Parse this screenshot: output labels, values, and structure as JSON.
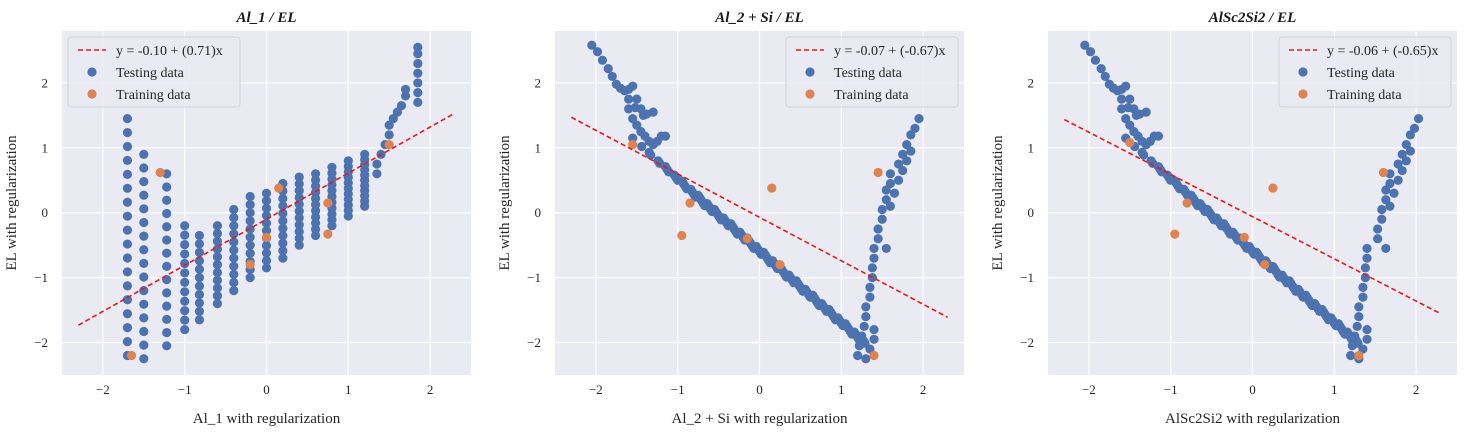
{
  "chart_data": [
    {
      "type": "scatter",
      "title": "Al_1 / EL",
      "xlabel": "Al_1 with regularization",
      "ylabel": "EL with regularization",
      "xlim": [
        -2.5,
        2.5
      ],
      "ylim": [
        -2.5,
        2.8
      ],
      "xticks": [
        -2,
        -1,
        0,
        1,
        2
      ],
      "yticks": [
        -2,
        -1,
        0,
        1,
        2
      ],
      "grid": true,
      "legend_position": "top-left",
      "fit_line": {
        "label": "y = -0.10 + (0.71)x",
        "intercept": -0.1,
        "slope": 0.71,
        "x_range": [
          -2.3,
          2.3
        ],
        "color": "#e8191b"
      },
      "series": [
        {
          "name": "Testing data",
          "color": "#4c72b0",
          "generator": {
            "x_start": -1.7,
            "x_end": 1.85,
            "levels": 13,
            "points_per_level": [
              18,
              16,
              8,
              13,
              12,
              11,
              10,
              10,
              10,
              11,
              12,
              14,
              16
            ],
            "band": [
              [
                -2.2,
                1.45
              ],
              [
                -2.25,
                0.9
              ],
              [
                -2.05,
                0.6
              ],
              [
                -1.8,
                -0.2
              ],
              [
                -1.65,
                -0.35
              ],
              [
                -1.4,
                -0.2
              ],
              [
                -1.2,
                0.05
              ],
              [
                -0.85,
                0.3
              ],
              [
                -0.6,
                0.5
              ],
              [
                -0.45,
                0.7
              ],
              [
                -0.15,
                0.8
              ],
              [
                0.1,
                0.9
              ],
              [
                0.15,
                0.95
              ]
            ],
            "tail": [
              [
                1.45,
                1.05
              ],
              [
                1.55,
                1.45
              ],
              [
                1.7,
                1.9
              ],
              [
                1.85,
                2.55
              ]
            ]
          }
        },
        {
          "name": "Training data",
          "color": "#dd8452",
          "points": [
            [
              -1.65,
              -2.2
            ],
            [
              -1.3,
              0.62
            ],
            [
              -0.2,
              -0.8
            ],
            [
              0.0,
              -0.38
            ],
            [
              0.15,
              0.38
            ],
            [
              0.75,
              0.15
            ],
            [
              0.75,
              -0.33
            ],
            [
              1.5,
              1.05
            ]
          ]
        }
      ]
    },
    {
      "type": "scatter",
      "title": "Al_2 + Si / EL",
      "xlabel": "Al_2 + Si with regularization",
      "ylabel": "EL with regularization",
      "xlim": [
        -2.5,
        2.5
      ],
      "ylim": [
        -2.5,
        2.8
      ],
      "xticks": [
        -2,
        -1,
        0,
        1,
        2
      ],
      "yticks": [
        -2,
        -1,
        0,
        1,
        2
      ],
      "grid": true,
      "legend_position": "top-right",
      "fit_line": {
        "label": "y = -0.07 + (-0.67)x",
        "intercept": -0.07,
        "slope": -0.67,
        "x_range": [
          -2.3,
          2.3
        ],
        "color": "#e8191b"
      },
      "series": [
        {
          "name": "Testing data",
          "color": "#4c72b0",
          "generator": {
            "mirror": true
          }
        },
        {
          "name": "Training data",
          "color": "#dd8452",
          "points": [
            [
              -1.55,
              1.05
            ],
            [
              -0.85,
              0.15
            ],
            [
              -0.95,
              -0.35
            ],
            [
              -0.15,
              -0.4
            ],
            [
              0.15,
              0.38
            ],
            [
              0.25,
              -0.8
            ],
            [
              1.45,
              0.62
            ],
            [
              1.4,
              -2.2
            ]
          ]
        }
      ]
    },
    {
      "type": "scatter",
      "title": "AlSc2Si2 / EL",
      "xlabel": "AlSc2Si2 with regularization",
      "ylabel": "EL with regularization",
      "xlim": [
        -2.5,
        2.5
      ],
      "ylim": [
        -2.5,
        2.8
      ],
      "xticks": [
        -2,
        -1,
        0,
        1,
        2
      ],
      "yticks": [
        -2,
        -1,
        0,
        1,
        2
      ],
      "grid": true,
      "legend_position": "top-right",
      "fit_line": {
        "label": "y = -0.06 + (-0.65)x",
        "intercept": -0.06,
        "slope": -0.65,
        "x_range": [
          -2.3,
          2.3
        ],
        "color": "#e8191b"
      },
      "series": [
        {
          "name": "Testing data",
          "color": "#4c72b0",
          "generator": {
            "mirror": true,
            "variant": "diag"
          }
        },
        {
          "name": "Training data",
          "color": "#dd8452",
          "points": [
            [
              -1.5,
              1.08
            ],
            [
              -0.8,
              0.15
            ],
            [
              -0.95,
              -0.33
            ],
            [
              -0.1,
              -0.38
            ],
            [
              0.25,
              0.38
            ],
            [
              0.15,
              -0.8
            ],
            [
              1.6,
              0.62
            ],
            [
              1.3,
              -2.2
            ]
          ]
        }
      ]
    }
  ]
}
